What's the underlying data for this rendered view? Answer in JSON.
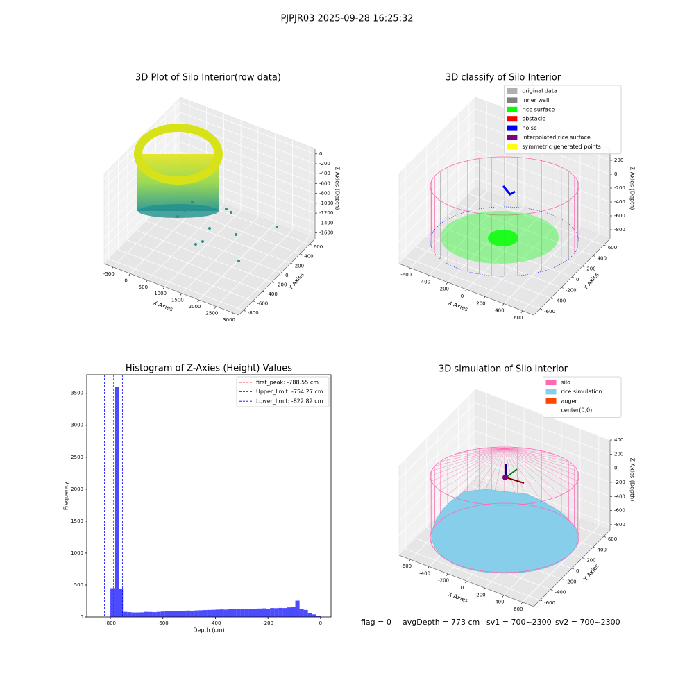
{
  "suptitle": "PJPJR03 2025-09-28 16:25:32",
  "footer": [
    "flag = 0",
    "avgDepth = 773 cm",
    "sv1 = 700~2300",
    "sv2 = 700~2300"
  ],
  "chart_data": [
    {
      "type": "scatter3d",
      "title": "3D Plot of Silo Interior(row data)",
      "xlabel": "X Axies",
      "ylabel": "Y Axies",
      "zlabel": "Z Axies (Depth)",
      "xlim": [
        -760,
        3160
      ],
      "ylim": [
        -900,
        720
      ],
      "zlim": [
        -1720,
        110
      ],
      "xticks": [
        -500,
        0,
        500,
        1000,
        1500,
        2000,
        2500,
        3000
      ],
      "yticks": [
        -800,
        -600,
        -400,
        -200,
        0,
        200,
        400,
        600
      ],
      "zticks": [
        -1600,
        -1400,
        -1200,
        -1000,
        -800,
        -600,
        -400,
        -200,
        0
      ],
      "grid": true
    },
    {
      "type": "scatter3d",
      "title": "3D classify of Silo Interior",
      "xlabel": "X Axies",
      "ylabel": "Y Axies",
      "zlabel": "Z Axies (Depth)",
      "xlim": [
        -720,
        720
      ],
      "ylim": [
        -720,
        720
      ],
      "zlim": [
        -930,
        370
      ],
      "xticks": [
        -600,
        -400,
        -200,
        0,
        200,
        400,
        600
      ],
      "yticks": [
        -600,
        -400,
        -200,
        0,
        200,
        400,
        600
      ],
      "zticks": [
        -800,
        -600,
        -400,
        -200,
        0,
        200
      ],
      "grid": true,
      "legend": "upper right",
      "legend_entries": [
        {
          "name": "original data",
          "color": "#b0b0b0"
        },
        {
          "name": "inner wall",
          "color": "#808080"
        },
        {
          "name": "rice surface",
          "color": "#00ff00"
        },
        {
          "name": "obstacle",
          "color": "#ff0000"
        },
        {
          "name": "noise",
          "color": "#0000ff"
        },
        {
          "name": "interpolated rice surface",
          "color": "#800080"
        },
        {
          "name": "symmetric generated points",
          "color": "#ffff00"
        }
      ]
    },
    {
      "type": "histogram",
      "title": "Histogram of Z-Axies (Height) Values",
      "xlabel": "Depth (cm)",
      "ylabel": "Frequency",
      "xlim": [
        -890,
        40
      ],
      "ylim": [
        0,
        3790
      ],
      "xticks": [
        -800,
        -600,
        -400,
        -200,
        0
      ],
      "yticks": [
        0,
        500,
        1000,
        1500,
        2000,
        2500,
        3000,
        3500
      ],
      "color": "#0000ff",
      "bins": [
        -800,
        -784,
        -768,
        -752,
        -736,
        -720,
        -704,
        -688,
        -672,
        -656,
        -640,
        -624,
        -608,
        -592,
        -576,
        -560,
        -544,
        -528,
        -512,
        -496,
        -480,
        -464,
        -448,
        -432,
        -416,
        -400,
        -384,
        -368,
        -352,
        -336,
        -320,
        -304,
        -288,
        -272,
        -256,
        -240,
        -224,
        -208,
        -192,
        -176,
        -160,
        -144,
        -128,
        -112,
        -96,
        -80,
        -64,
        -48,
        -32,
        -16,
        0
      ],
      "values": [
        450,
        3600,
        440,
        80,
        75,
        70,
        70,
        72,
        80,
        78,
        75,
        80,
        85,
        90,
        88,
        92,
        90,
        95,
        100,
        98,
        102,
        105,
        108,
        110,
        112,
        115,
        118,
        115,
        120,
        122,
        125,
        125,
        128,
        130,
        128,
        132,
        135,
        130,
        140,
        138,
        142,
        140,
        150,
        160,
        255,
        125,
        110,
        60,
        40,
        20
      ],
      "legend": "upper right",
      "lines": [
        {
          "name": "first_peak: -788.55 cm",
          "value": -788.55,
          "color": "#ff0000"
        },
        {
          "name": "Upper_limit: -754.27 cm",
          "value": -754.27,
          "color": "#0000ff"
        },
        {
          "name": "Lower_limit: -822.82 cm",
          "value": -822.82,
          "color": "#0000ff"
        }
      ]
    },
    {
      "type": "surface3d",
      "title": "3D simulation of Silo Interior",
      "xlabel": "X Axies",
      "ylabel": "Y Axies",
      "zlabel": "Z Axies (Depth)",
      "xlim": [
        -720,
        720
      ],
      "ylim": [
        -720,
        720
      ],
      "zlim": [
        -880,
        400
      ],
      "xticks": [
        -600,
        -400,
        -200,
        0,
        200,
        400,
        600
      ],
      "yticks": [
        -600,
        -400,
        -200,
        0,
        200,
        400,
        600
      ],
      "zticks": [
        -800,
        -600,
        -400,
        -200,
        0,
        200,
        400
      ],
      "grid": true,
      "legend": "upper right",
      "legend_entries": [
        {
          "name": "silo",
          "color": "#ff69b4"
        },
        {
          "name": "rice simulation",
          "color": "#87ceeb"
        },
        {
          "name": "auger",
          "color": "#ff4500"
        },
        {
          "name": "center(0,0)",
          "color": "#ffffff"
        }
      ]
    }
  ]
}
